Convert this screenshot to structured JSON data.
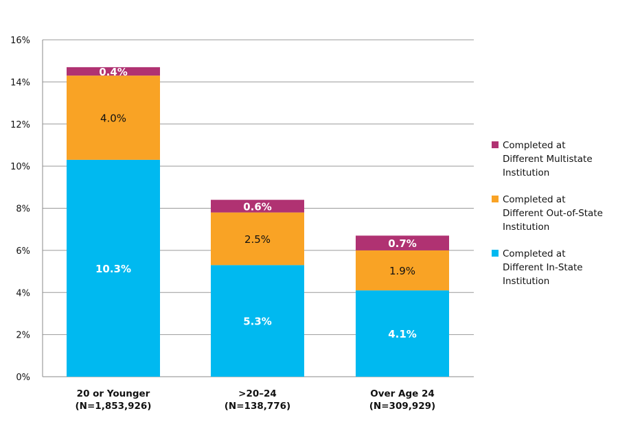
{
  "chart_data": {
    "type": "bar",
    "stacked": true,
    "title": "",
    "xlabel": "",
    "ylabel": "",
    "ylim": [
      0,
      16
    ],
    "yticks": [
      0,
      2,
      4,
      6,
      8,
      10,
      12,
      14,
      16
    ],
    "ytick_format": "%",
    "grid": true,
    "legend_position": "right",
    "categories": [
      [
        "20 or Younger",
        "(N=1,853,926)"
      ],
      [
        ">20–24",
        "(N=138,776)"
      ],
      [
        "Over Age 24",
        "(N=309,929)"
      ]
    ],
    "series": [
      {
        "name": "Completed at Different In-State Institution",
        "legend_lines": [
          "Completed at",
          "Different In-State",
          "Institution"
        ],
        "color": "#00b9f0",
        "values": [
          10.3,
          5.3,
          4.1
        ],
        "labels": [
          "10.3%",
          "5.3%",
          "4.1%"
        ]
      },
      {
        "name": "Completed at Different Out-of-State Institution",
        "legend_lines": [
          "Completed at",
          "Different Out-of-State",
          "Institution"
        ],
        "color": "#f9a325",
        "values": [
          4.0,
          2.5,
          1.9
        ],
        "labels": [
          "4.0%",
          "2.5%",
          "1.9%"
        ]
      },
      {
        "name": "Completed at Different Multistate Institution",
        "legend_lines": [
          "Completed at",
          "Different Multistate",
          "Institution"
        ],
        "color": "#b03272",
        "values": [
          0.4,
          0.6,
          0.7
        ],
        "labels": [
          "0.4%",
          "0.6%",
          "0.7%"
        ]
      }
    ]
  }
}
